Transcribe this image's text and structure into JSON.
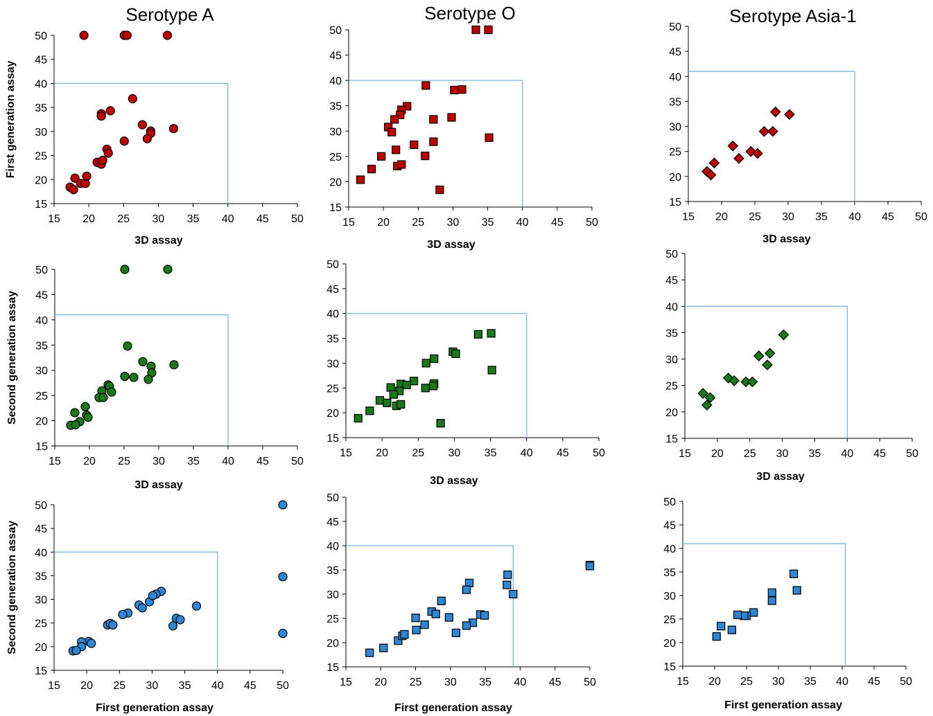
{
  "column_titles": [
    "Serotype A",
    "Serotype O",
    "Serotype Asia-1"
  ],
  "colors": {
    "red": "#c00000",
    "green": "#1a7a1a",
    "blue": "#2e86d4",
    "threshold": "#7eb3d8"
  },
  "chart_data": [
    {
      "type": "scatter",
      "title": "Serotype A",
      "marker": "circle",
      "color": "#c00000",
      "xlabel": "3D assay",
      "ylabel": "First generation assay",
      "xlim": [
        15,
        50
      ],
      "ylim": [
        15,
        50
      ],
      "xticks": [
        "15",
        "20",
        "25",
        "30",
        "35",
        "40",
        "45",
        "50"
      ],
      "yticks": [
        "15",
        "20",
        "25",
        "30",
        "35",
        "40",
        "45",
        "50"
      ],
      "threshold": [
        40,
        40
      ],
      "x": [
        19.3,
        25.1,
        25.5,
        31.3,
        26.3,
        21.8,
        23.1,
        21.8,
        27.7,
        28.9,
        28.9,
        28.4,
        32.2,
        25.1,
        22.6,
        22.8,
        21.2,
        21.8,
        22.0,
        17.3,
        17.8,
        18.0,
        18.8,
        19.5,
        19.7
      ],
      "y": [
        50,
        50,
        50,
        50,
        36.8,
        33.7,
        34.3,
        33.2,
        31.4,
        30.1,
        29.6,
        28.5,
        30.6,
        28.0,
        26.3,
        25.5,
        23.6,
        23.2,
        24.0,
        18.4,
        17.9,
        20.3,
        19.2,
        19.2,
        20.7
      ]
    },
    {
      "type": "scatter",
      "title": "Serotype O",
      "marker": "square",
      "color": "#c00000",
      "xlabel": "3D assay",
      "ylabel": "",
      "xlim": [
        15,
        50
      ],
      "ylim": [
        15,
        50
      ],
      "xticks": [
        "15",
        "20",
        "25",
        "30",
        "35",
        "40",
        "45",
        "50"
      ],
      "yticks": [
        "15",
        "20",
        "25",
        "30",
        "35",
        "40",
        "45",
        "50"
      ],
      "threshold": [
        40,
        40
      ],
      "x": [
        33.3,
        35.1,
        26.1,
        30.2,
        31.3,
        23.4,
        22.6,
        22.4,
        21.6,
        20.7,
        21.2,
        29.8,
        27.2,
        35.2,
        27.2,
        24.4,
        21.8,
        19.7,
        18.3,
        16.7,
        26.0,
        22.0,
        22.6,
        28.1
      ],
      "y": [
        50,
        50,
        39.0,
        38.1,
        38.2,
        34.9,
        34.2,
        33.2,
        32.3,
        30.8,
        29.8,
        32.7,
        32.3,
        28.7,
        27.9,
        27.3,
        26.3,
        25.0,
        22.5,
        20.4,
        25.1,
        23.1,
        23.4,
        18.4
      ]
    },
    {
      "type": "scatter",
      "title": "Serotype Asia-1",
      "marker": "diamond",
      "color": "#c00000",
      "xlabel": "3D assay",
      "ylabel": "",
      "xlim": [
        15,
        50
      ],
      "ylim": [
        15,
        50
      ],
      "xticks": [
        "15",
        "20",
        "25",
        "30",
        "35",
        "40",
        "45",
        "50"
      ],
      "yticks": [
        "15",
        "20",
        "25",
        "30",
        "35",
        "40",
        "45",
        "50"
      ],
      "threshold": [
        40,
        41
      ],
      "x": [
        28.1,
        30.2,
        26.4,
        27.7,
        21.7,
        24.4,
        25.4,
        22.6,
        18.9,
        17.8,
        18.4
      ],
      "y": [
        32.9,
        32.4,
        29.0,
        29.0,
        26.1,
        25.0,
        24.6,
        23.6,
        22.7,
        21.0,
        20.3
      ]
    },
    {
      "type": "scatter",
      "title": "",
      "marker": "circle",
      "color": "#1a7a1a",
      "xlabel": "3D assay",
      "ylabel": "Second generation assay",
      "xlim": [
        15,
        50
      ],
      "ylim": [
        15,
        50
      ],
      "xticks": [
        "15",
        "20",
        "25",
        "30",
        "35",
        "40",
        "45",
        "50"
      ],
      "yticks": [
        "15",
        "20",
        "25",
        "30",
        "35",
        "40",
        "45",
        "50"
      ],
      "threshold": [
        40,
        41
      ],
      "x": [
        25.1,
        31.3,
        25.5,
        27.7,
        28.9,
        32.2,
        29.0,
        25.1,
        26.4,
        28.5,
        22.7,
        22.9,
        23.2,
        21.8,
        21.4,
        22.0,
        19.4,
        17.9,
        19.6,
        19.8,
        18.6,
        17.3,
        18.0
      ],
      "y": [
        50,
        50,
        34.8,
        31.7,
        30.8,
        31.1,
        29.5,
        28.8,
        28.6,
        28.2,
        27.1,
        26.8,
        25.7,
        25.9,
        24.6,
        24.6,
        22.8,
        21.6,
        21.1,
        20.7,
        19.8,
        19.1,
        19.2
      ]
    },
    {
      "type": "scatter",
      "title": "",
      "marker": "square",
      "color": "#1a7a1a",
      "xlabel": "3D assay",
      "ylabel": "",
      "xlim": [
        15,
        50
      ],
      "ylim": [
        15,
        50
      ],
      "xticks": [
        "15",
        "20",
        "25",
        "30",
        "35",
        "40",
        "45",
        "50"
      ],
      "yticks": [
        "15",
        "20",
        "25",
        "30",
        "35",
        "40",
        "45",
        "50"
      ],
      "threshold": [
        40,
        40
      ],
      "x": [
        33.3,
        35.1,
        29.8,
        30.2,
        27.2,
        26.1,
        24.4,
        22.6,
        23.4,
        21.2,
        22.4,
        21.6,
        27.2,
        27.1,
        26.0,
        19.7,
        20.7,
        22.0,
        22.6,
        18.3,
        16.7,
        35.2,
        28.1
      ],
      "y": [
        35.8,
        36.0,
        32.3,
        31.9,
        30.9,
        30.0,
        26.4,
        25.8,
        25.6,
        25.1,
        24.4,
        23.7,
        25.9,
        25.4,
        25.0,
        22.5,
        22.0,
        21.4,
        21.7,
        20.4,
        18.9,
        28.6,
        17.9
      ]
    },
    {
      "type": "scatter",
      "title": "",
      "marker": "diamond",
      "color": "#1a7a1a",
      "xlabel": "3D assay",
      "ylabel": "",
      "xlim": [
        15,
        50
      ],
      "ylim": [
        15,
        50
      ],
      "xticks": [
        "15",
        "20",
        "25",
        "30",
        "35",
        "40",
        "45",
        "50"
      ],
      "yticks": [
        "15",
        "20",
        "25",
        "30",
        "35",
        "40",
        "45",
        "50"
      ],
      "threshold": [
        40,
        40
      ],
      "x": [
        30.2,
        26.4,
        28.1,
        27.7,
        21.7,
        22.6,
        24.4,
        25.4,
        17.8,
        18.9,
        18.4
      ],
      "y": [
        34.6,
        30.6,
        31.1,
        28.9,
        26.4,
        25.9,
        25.7,
        25.7,
        23.5,
        22.7,
        21.3
      ]
    },
    {
      "type": "scatter",
      "title": "",
      "marker": "circle",
      "color": "#2e86d4",
      "xlabel": "First generation assay",
      "ylabel": "Second generation assay",
      "xlim": [
        15,
        50
      ],
      "ylim": [
        15,
        50
      ],
      "xticks": [
        "15",
        "20",
        "25",
        "30",
        "35",
        "40",
        "45",
        "50"
      ],
      "yticks": [
        "15",
        "20",
        "25",
        "30",
        "35",
        "40",
        "45",
        "50"
      ],
      "threshold": [
        40,
        40
      ],
      "x": [
        50,
        50,
        50,
        36.8,
        31.4,
        30.6,
        29.6,
        30.1,
        28.0,
        28.5,
        33.2,
        33.7,
        34.3,
        26.3,
        25.5,
        23.2,
        23.6,
        24.0,
        20.3,
        20.7,
        19.2,
        19.2,
        17.9,
        18.4
      ],
      "y": [
        50,
        34.8,
        22.8,
        28.6,
        31.7,
        31.1,
        29.5,
        30.8,
        28.8,
        28.2,
        24.4,
        26.0,
        25.7,
        27.1,
        26.8,
        24.6,
        24.9,
        24.6,
        21.1,
        20.7,
        21.0,
        20.0,
        19.1,
        19.2
      ]
    },
    {
      "type": "scatter",
      "title": "",
      "marker": "square",
      "color": "#2e86d4",
      "xlabel": "First generation assay",
      "ylabel": "",
      "xlim": [
        15,
        50
      ],
      "ylim": [
        15,
        50
      ],
      "xticks": [
        "15",
        "20",
        "25",
        "30",
        "35",
        "40",
        "45",
        "50"
      ],
      "yticks": [
        "15",
        "20",
        "25",
        "30",
        "35",
        "40",
        "45",
        "50"
      ],
      "threshold": [
        39,
        40
      ],
      "x": [
        50,
        50,
        38.2,
        38.1,
        39.0,
        32.7,
        32.3,
        28.7,
        27.3,
        27.9,
        29.8,
        26.3,
        25.0,
        25.1,
        33.2,
        34.3,
        34.9,
        32.3,
        30.8,
        22.5,
        23.1,
        23.4,
        20.4,
        18.4
      ],
      "y": [
        36.0,
        35.8,
        34.0,
        31.9,
        30.0,
        32.3,
        30.9,
        28.6,
        26.4,
        25.9,
        25.2,
        23.7,
        25.1,
        22.6,
        24.1,
        25.8,
        25.6,
        23.5,
        22.0,
        20.4,
        21.4,
        21.7,
        18.9,
        17.9
      ]
    },
    {
      "type": "scatter",
      "title": "",
      "marker": "square",
      "color": "#2e86d4",
      "xlabel": "First generation assay",
      "ylabel": "",
      "xlim": [
        15,
        50
      ],
      "ylim": [
        15,
        50
      ],
      "xticks": [
        "15",
        "20",
        "25",
        "30",
        "35",
        "40",
        "45",
        "50"
      ],
      "yticks": [
        "15",
        "20",
        "25",
        "30",
        "35",
        "40",
        "45",
        "50"
      ],
      "threshold": [
        40.5,
        41
      ],
      "x": [
        32.4,
        32.9,
        29.0,
        29.0,
        26.1,
        25.0,
        24.6,
        23.6,
        21.0,
        22.7,
        20.3
      ],
      "y": [
        34.6,
        31.1,
        30.6,
        28.9,
        26.4,
        25.7,
        25.7,
        25.9,
        23.5,
        22.7,
        21.3
      ]
    }
  ]
}
